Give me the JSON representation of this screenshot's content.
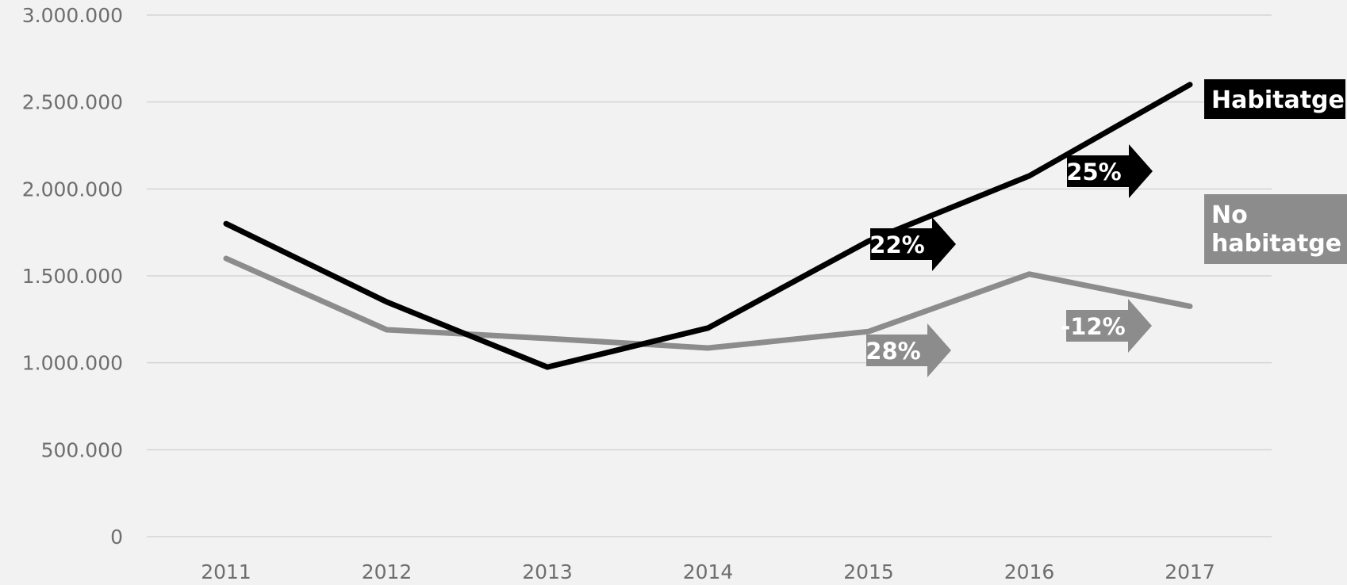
{
  "chart_data": {
    "type": "line",
    "title": "",
    "xlabel": "",
    "ylabel": "",
    "x": [
      "2011",
      "2012",
      "2013",
      "2014",
      "2015",
      "2016",
      "2017"
    ],
    "ylim": [
      0,
      3000000
    ],
    "yticks": [
      0,
      500000,
      1000000,
      1500000,
      2000000,
      2500000,
      3000000
    ],
    "ytick_labels": [
      "0",
      "500.000",
      "1.000.000",
      "1.500.000",
      "2.000.000",
      "2.500.000",
      "3.000.000"
    ],
    "grid": true,
    "series": [
      {
        "name": "Habitatge",
        "color": "#000000",
        "values": [
          1800000,
          1350000,
          975000,
          1200000,
          1700000,
          2075000,
          2600000
        ]
      },
      {
        "name": "No habitatge",
        "color": "#8c8c8c",
        "values": [
          1600000,
          1190000,
          1140000,
          1085000,
          1180000,
          1510000,
          1325000
        ]
      }
    ],
    "annotations": [
      {
        "text": "22%",
        "series": "Habitatge",
        "color": "#000000"
      },
      {
        "text": "25%",
        "series": "Habitatge",
        "color": "#000000"
      },
      {
        "text": "28%",
        "series": "No habitatge",
        "color": "#8c8c8c"
      },
      {
        "text": "-12%",
        "series": "No habitatge",
        "color": "#8c8c8c"
      }
    ]
  }
}
